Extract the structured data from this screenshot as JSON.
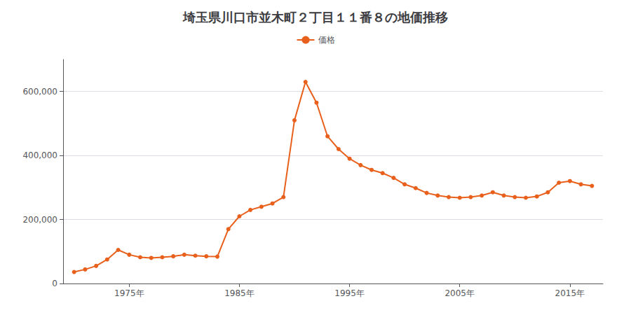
{
  "chart_data": {
    "type": "line",
    "title": "埼玉県川口市並木町２丁目１１番８の地価推移",
    "x": [
      1970,
      1971,
      1972,
      1973,
      1974,
      1975,
      1976,
      1977,
      1978,
      1979,
      1980,
      1981,
      1982,
      1983,
      1984,
      1985,
      1986,
      1987,
      1988,
      1989,
      1990,
      1991,
      1992,
      1993,
      1994,
      1995,
      1996,
      1997,
      1998,
      1999,
      2000,
      2001,
      2002,
      2003,
      2004,
      2005,
      2006,
      2007,
      2008,
      2009,
      2010,
      2011,
      2012,
      2013,
      2014,
      2015,
      2016,
      2017
    ],
    "series": [
      {
        "name": "価格",
        "color": "#e8601c",
        "marker": "circle",
        "values": [
          36000,
          44000,
          55000,
          75000,
          105000,
          90000,
          82000,
          80000,
          82000,
          85000,
          90000,
          87000,
          85000,
          84000,
          170000,
          210000,
          230000,
          240000,
          250000,
          270000,
          510000,
          630000,
          565000,
          460000,
          420000,
          390000,
          370000,
          355000,
          345000,
          330000,
          310000,
          298000,
          283000,
          275000,
          270000,
          268000,
          270000,
          275000,
          285000,
          275000,
          270000,
          268000,
          272000,
          285000,
          315000,
          320000,
          310000,
          305000
        ]
      }
    ],
    "xlim": [
      1969,
      2018
    ],
    "xticks": [
      {
        "value": 1975,
        "label": "1975年"
      },
      {
        "value": 1985,
        "label": "1985年"
      },
      {
        "value": 1995,
        "label": "1995年"
      },
      {
        "value": 2005,
        "label": "2005年"
      },
      {
        "value": 2015,
        "label": "2015年"
      }
    ],
    "ylim": [
      0,
      700000
    ],
    "yticks": [
      0,
      {
        "value": 200000,
        "label": "200,000"
      },
      {
        "value": 400000,
        "label": "400,000"
      },
      {
        "value": 600000,
        "label": "600,000"
      }
    ],
    "grid": true,
    "legend": "top"
  }
}
